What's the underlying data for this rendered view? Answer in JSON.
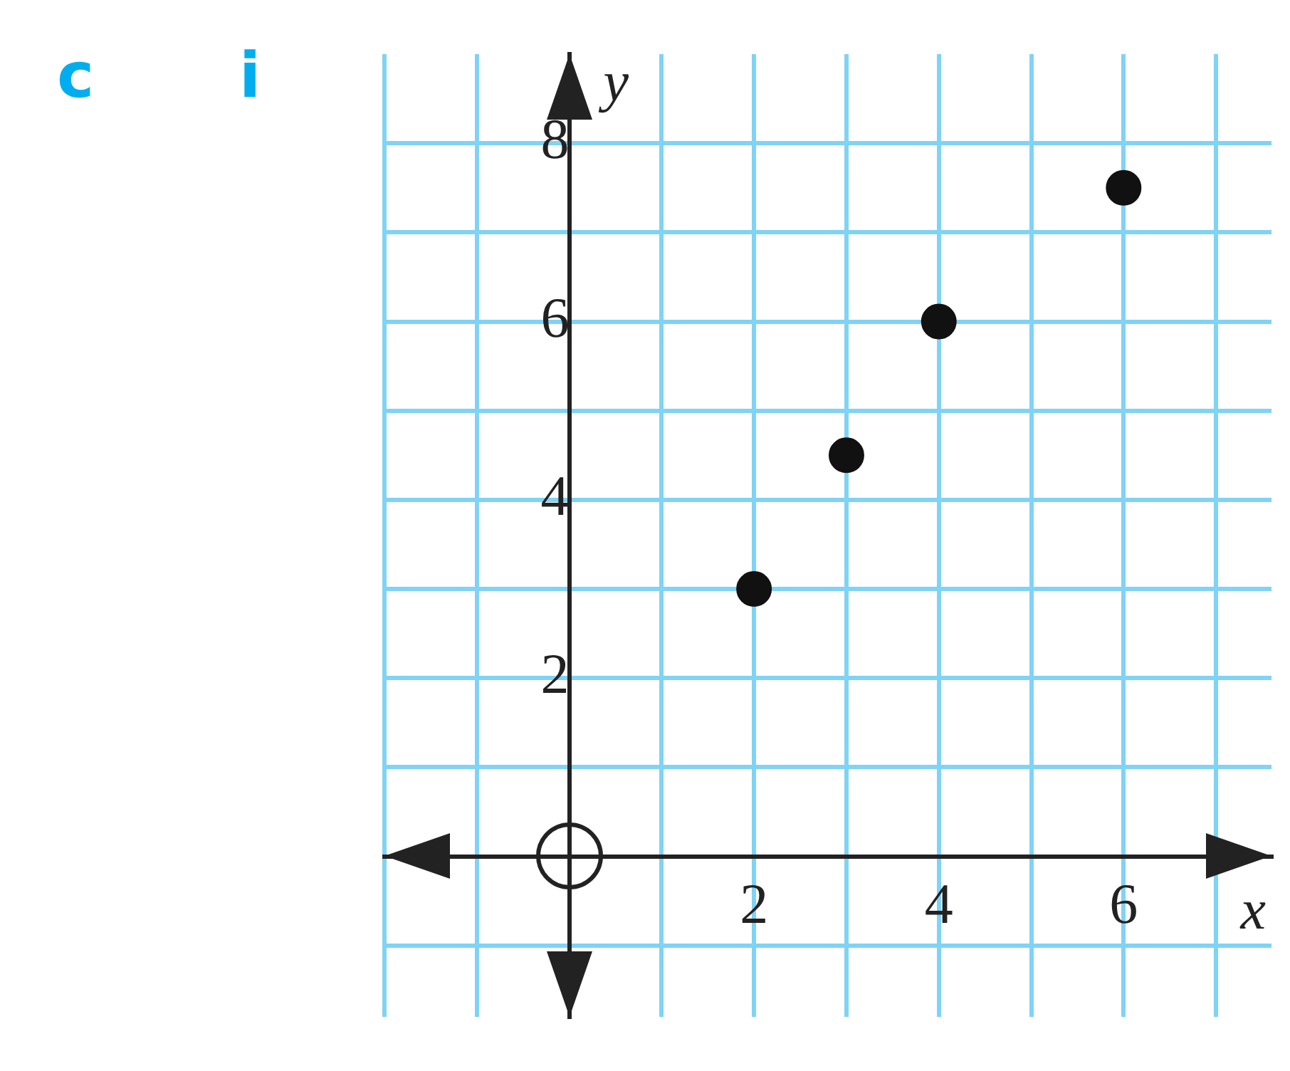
{
  "chart_data": {
    "type": "scatter",
    "xlabel": "x",
    "ylabel": "y",
    "annotations": [
      "c",
      "i"
    ],
    "x": [
      2,
      3,
      4,
      6
    ],
    "series": [
      {
        "color": "#111111",
        "values": [
          3,
          4.5,
          6,
          7.5
        ]
      }
    ],
    "xlim": [
      -2,
      7.6
    ],
    "ylim": [
      -1.8,
      9
    ],
    "xticks": [
      {
        "value": -2,
        "label": null
      },
      {
        "value": -1,
        "label": null
      },
      {
        "value": 0,
        "label": null
      },
      {
        "value": 1,
        "label": null
      },
      2,
      {
        "value": 3,
        "label": null
      },
      4,
      {
        "value": 5,
        "label": null
      },
      6,
      {
        "value": 7,
        "label": null
      }
    ],
    "yticks": [
      {
        "value": -1,
        "label": null
      },
      {
        "value": 0,
        "label": null
      },
      {
        "value": 1,
        "label": null
      },
      2,
      {
        "value": 3,
        "label": null
      },
      4,
      {
        "value": 5,
        "label": null
      },
      6,
      {
        "value": 7,
        "label": null
      },
      8
    ],
    "grid": true,
    "legend": false,
    "marker": "circle"
  }
}
